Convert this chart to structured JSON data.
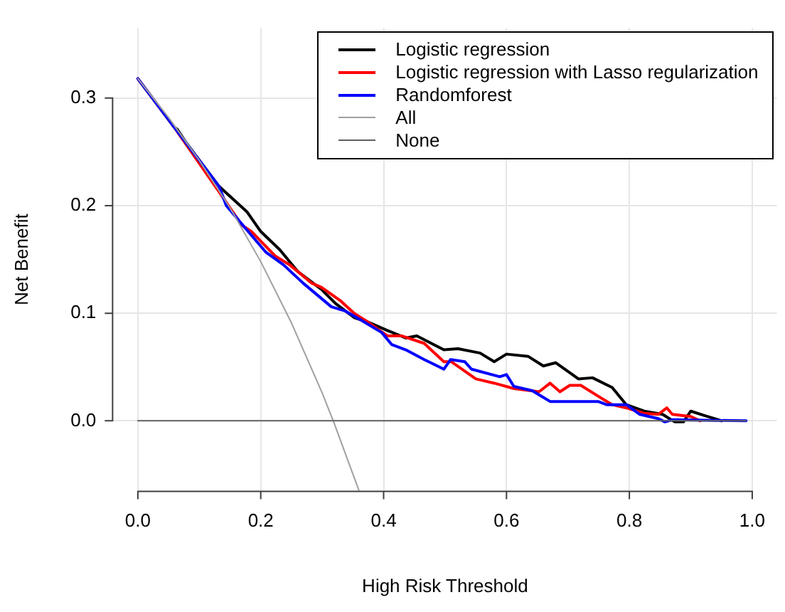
{
  "chart_data": {
    "type": "line",
    "xlabel": "High Risk Threshold",
    "ylabel": "Net Benefit",
    "xlim": [
      -0.04,
      1.04
    ],
    "ylim": [
      -0.065,
      0.365
    ],
    "xticks": [
      {
        "value": 0,
        "label": "0.0"
      },
      0.2,
      0.4,
      0.6,
      0.8,
      {
        "value": 1,
        "label": "1.0"
      }
    ],
    "yticks": [
      {
        "value": 0,
        "label": "0.0"
      },
      0.1,
      0.2,
      0.3
    ],
    "grid": true,
    "legend": "top right",
    "marker": "none",
    "line_style": "solid",
    "series": [
      {
        "name": "Logistic regression",
        "color": "#000000",
        "x": [
          0,
          0.059,
          0.064,
          0.078,
          0.132,
          0.178,
          0.2,
          0.231,
          0.26,
          0.299,
          0.322,
          0.352,
          0.374,
          0.406,
          0.436,
          0.454,
          0.498,
          0.521,
          0.557,
          0.58,
          0.6,
          0.635,
          0.66,
          0.68,
          0.717,
          0.74,
          0.772,
          0.795,
          0.824,
          0.854,
          0.874,
          0.888,
          0.9,
          0.922,
          0.945,
          0.95
        ],
        "values": [
          0.318,
          0.273,
          0.271,
          0.259,
          0.218,
          0.194,
          0.176,
          0.159,
          0.139,
          0.122,
          0.109,
          0.096,
          0.092,
          0.084,
          0.077,
          0.079,
          0.066,
          0.067,
          0.063,
          0.055,
          0.062,
          0.06,
          0.051,
          0.054,
          0.039,
          0.04,
          0.031,
          0.015,
          0.009,
          0.006,
          -0.001,
          -0.001,
          0.009,
          0.005,
          0.001,
          0
        ]
      },
      {
        "name": "Logistic regression with Lasso regularization",
        "color": "#ff0000",
        "x": [
          0,
          0.059,
          0.132,
          0.169,
          0.185,
          0.2,
          0.224,
          0.247,
          0.283,
          0.299,
          0.329,
          0.352,
          0.374,
          0.406,
          0.429,
          0.466,
          0.498,
          0.51,
          0.55,
          0.58,
          0.612,
          0.653,
          0.671,
          0.687,
          0.703,
          0.721,
          0.749,
          0.772,
          0.795,
          0.824,
          0.847,
          0.861,
          0.87,
          0.9,
          0.915
        ],
        "values": [
          0.318,
          0.273,
          0.213,
          0.182,
          0.176,
          0.167,
          0.153,
          0.145,
          0.128,
          0.124,
          0.112,
          0.1,
          0.092,
          0.079,
          0.079,
          0.072,
          0.055,
          0.055,
          0.039,
          0.035,
          0.03,
          0.027,
          0.035,
          0.027,
          0.033,
          0.033,
          0.023,
          0.015,
          0.012,
          0.007,
          0.006,
          0.012,
          0.006,
          0.004,
          0
        ]
      },
      {
        "name": "Randomforest",
        "color": "#0000ff",
        "x": [
          0,
          0.059,
          0.132,
          0.144,
          0.178,
          0.208,
          0.237,
          0.269,
          0.315,
          0.338,
          0.368,
          0.397,
          0.413,
          0.436,
          0.466,
          0.498,
          0.509,
          0.532,
          0.543,
          0.589,
          0.6,
          0.612,
          0.642,
          0.671,
          0.694,
          0.749,
          0.763,
          0.795,
          0.817,
          0.847,
          0.858,
          0.87,
          0.99
        ],
        "values": [
          0.318,
          0.273,
          0.218,
          0.2,
          0.177,
          0.157,
          0.145,
          0.128,
          0.106,
          0.102,
          0.092,
          0.082,
          0.071,
          0.066,
          0.057,
          0.048,
          0.057,
          0.055,
          0.048,
          0.041,
          0.043,
          0.032,
          0.028,
          0.018,
          0.018,
          0.018,
          0.015,
          0.015,
          0.006,
          0.002,
          -0.001,
          0.001,
          0
        ]
      },
      {
        "name": "All",
        "color": "#a0a0a0",
        "x": [
          0,
          0.05,
          0.1,
          0.15,
          0.2,
          0.25,
          0.3,
          0.32,
          0.36
        ],
        "values": [
          0.318,
          0.282,
          0.242,
          0.198,
          0.148,
          0.091,
          0.026,
          -0.003,
          -0.065
        ]
      },
      {
        "name": "None",
        "color": "#606060",
        "x": [
          0,
          0.99
        ],
        "values": [
          0,
          0
        ]
      }
    ]
  }
}
